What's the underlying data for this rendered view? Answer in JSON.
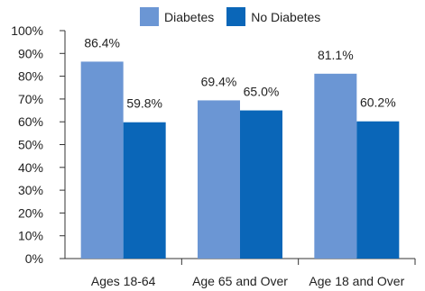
{
  "chart_data": {
    "type": "bar",
    "categories": [
      "Ages 18-64",
      "Age 65 and Over",
      "Age 18 and Over"
    ],
    "series": [
      {
        "name": "Diabetes",
        "values": [
          86.4,
          69.4,
          81.1
        ],
        "labels": [
          "86.4%",
          "69.4%",
          "81.1%"
        ],
        "color": "#6b96d4"
      },
      {
        "name": "No Diabetes",
        "values": [
          59.8,
          65.0,
          60.2
        ],
        "labels": [
          "59.8%",
          "65.0%",
          "60.2%"
        ],
        "color": "#0a66b8"
      }
    ],
    "yticks": [
      "0%",
      "10%",
      "20%",
      "30%",
      "40%",
      "50%",
      "60%",
      "70%",
      "80%",
      "90%",
      "100%"
    ],
    "ylim": [
      0,
      100
    ],
    "title": "",
    "xlabel": "",
    "ylabel": "",
    "grid": false,
    "legend_position": "top"
  }
}
